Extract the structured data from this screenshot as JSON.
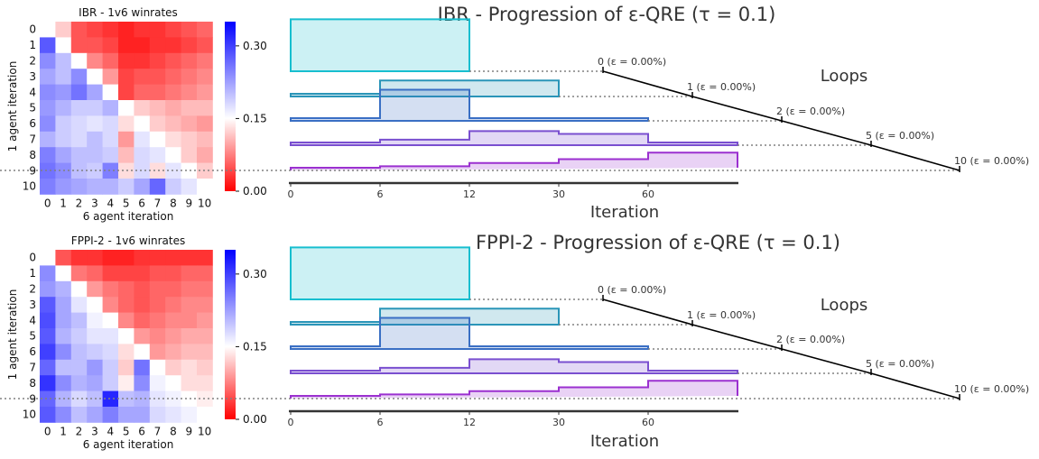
{
  "colors": {
    "loop0": "#17becf",
    "loop1": "#2a95b8",
    "loop2": "#3a6fc4",
    "loop3": "#7a4fd0",
    "loop4": "#9b30d0",
    "axis": "#333333",
    "guide": "#808080"
  },
  "panels": [
    {
      "heatmap": {
        "title": "IBR - 1v6 winrates",
        "xlabel": "6 agent iteration",
        "ylabel": "1 agent iteration",
        "ticks": [
          "0",
          "1",
          "2",
          "3",
          "4",
          "5",
          "6",
          "7",
          "8",
          "9",
          "10"
        ],
        "colorbar": {
          "min": 0.0,
          "max": 0.35,
          "mid": 0.15,
          "tick_labels": [
            "0.00",
            "0.15",
            "0.30"
          ]
        },
        "values": [
          [
            0.15,
            0.12,
            0.05,
            0.04,
            0.03,
            0.02,
            0.03,
            0.03,
            0.04,
            0.05,
            0.06
          ],
          [
            0.28,
            0.15,
            0.05,
            0.05,
            0.04,
            0.02,
            0.02,
            0.03,
            0.03,
            0.04,
            0.05
          ],
          [
            0.24,
            0.2,
            0.15,
            0.08,
            0.06,
            0.03,
            0.03,
            0.04,
            0.05,
            0.06,
            0.07
          ],
          [
            0.22,
            0.2,
            0.24,
            0.15,
            0.09,
            0.04,
            0.05,
            0.05,
            0.06,
            0.07,
            0.08
          ],
          [
            0.24,
            0.23,
            0.26,
            0.22,
            0.15,
            0.04,
            0.06,
            0.06,
            0.07,
            0.08,
            0.09
          ],
          [
            0.23,
            0.21,
            0.19,
            0.19,
            0.21,
            0.15,
            0.12,
            0.11,
            0.1,
            0.11,
            0.11
          ],
          [
            0.24,
            0.19,
            0.18,
            0.17,
            0.18,
            0.13,
            0.15,
            0.12,
            0.11,
            0.1,
            0.09
          ],
          [
            0.21,
            0.19,
            0.18,
            0.2,
            0.18,
            0.09,
            0.17,
            0.15,
            0.13,
            0.12,
            0.11
          ],
          [
            0.25,
            0.22,
            0.2,
            0.2,
            0.19,
            0.11,
            0.18,
            0.17,
            0.15,
            0.12,
            0.1
          ],
          [
            0.26,
            0.24,
            0.2,
            0.19,
            0.25,
            0.13,
            0.18,
            0.13,
            0.17,
            0.15,
            0.12
          ],
          [
            0.25,
            0.23,
            0.22,
            0.21,
            0.21,
            0.19,
            0.22,
            0.27,
            0.19,
            0.17,
            0.15
          ]
        ]
      },
      "chart_data": {
        "type": "area",
        "title": "IBR - Progression of ε-QRE (τ = 0.1)",
        "xlabel": "Iteration",
        "x_tick_labels": [
          "0",
          "6",
          "12",
          "30",
          "60"
        ],
        "annotation": "Loops",
        "series": [
          {
            "loop": "0",
            "epsilon_label": "0 (ε = 0.00%)",
            "segments": [
              0.26,
              0.26
            ],
            "break_iteration": "6"
          },
          {
            "loop": "1",
            "epsilon_label": "1 (ε = 0.00%)",
            "segments": [
              0.0,
              0.07,
              0.07
            ],
            "break_iteration": "12"
          },
          {
            "loop": "2",
            "epsilon_label": "2 (ε = 0.00%)",
            "segments": [
              0.0,
              0.15,
              0.0,
              0.0
            ],
            "break_iteration": "30"
          },
          {
            "loop": "5",
            "epsilon_label": "5 (ε = 0.00%)",
            "segments": [
              0.0,
              0.015,
              0.06,
              0.045,
              0.0
            ],
            "break_iteration": "60"
          },
          {
            "loop": "10",
            "epsilon_label": "10 (ε = 0.00%)",
            "segments": [
              0.0,
              0.008,
              0.025,
              0.045,
              0.08,
              0.0
            ],
            "break_iteration": "end"
          }
        ]
      }
    },
    {
      "heatmap": {
        "title": "FPPI-2 - 1v6 winrates",
        "xlabel": "6 agent iteration",
        "ylabel": "1 agent iteration",
        "ticks": [
          "0",
          "1",
          "2",
          "3",
          "4",
          "5",
          "6",
          "7",
          "8",
          "9",
          "10"
        ],
        "colorbar": {
          "min": 0.0,
          "max": 0.35,
          "mid": 0.15,
          "tick_labels": [
            "0.00",
            "0.15",
            "0.30"
          ]
        },
        "values": [
          [
            0.15,
            0.05,
            0.03,
            0.03,
            0.02,
            0.02,
            0.03,
            0.03,
            0.03,
            0.03,
            0.03
          ],
          [
            0.24,
            0.15,
            0.07,
            0.06,
            0.04,
            0.04,
            0.04,
            0.05,
            0.05,
            0.06,
            0.06
          ],
          [
            0.23,
            0.21,
            0.15,
            0.09,
            0.07,
            0.06,
            0.05,
            0.06,
            0.06,
            0.07,
            0.07
          ],
          [
            0.28,
            0.22,
            0.17,
            0.15,
            0.08,
            0.06,
            0.05,
            0.06,
            0.07,
            0.08,
            0.08
          ],
          [
            0.29,
            0.22,
            0.2,
            0.16,
            0.15,
            0.08,
            0.06,
            0.07,
            0.08,
            0.08,
            0.09
          ],
          [
            0.28,
            0.21,
            0.19,
            0.17,
            0.17,
            0.15,
            0.09,
            0.08,
            0.09,
            0.1,
            0.1
          ],
          [
            0.3,
            0.24,
            0.2,
            0.19,
            0.18,
            0.13,
            0.15,
            0.09,
            0.1,
            0.11,
            0.11
          ],
          [
            0.27,
            0.2,
            0.2,
            0.23,
            0.19,
            0.12,
            0.26,
            0.15,
            0.12,
            0.13,
            0.12
          ],
          [
            0.31,
            0.24,
            0.21,
            0.22,
            0.19,
            0.14,
            0.24,
            0.16,
            0.15,
            0.13,
            0.13
          ],
          [
            0.27,
            0.21,
            0.18,
            0.2,
            0.32,
            0.2,
            0.21,
            0.17,
            0.16,
            0.15,
            0.14
          ],
          [
            0.28,
            0.24,
            0.2,
            0.22,
            0.25,
            0.22,
            0.22,
            0.18,
            0.17,
            0.16,
            0.15
          ]
        ]
      },
      "chart_data": {
        "type": "area",
        "title": "FPPI-2 - Progression of ε-QRE (τ = 0.1)",
        "xlabel": "Iteration",
        "x_tick_labels": [
          "0",
          "6",
          "12",
          "30",
          "60"
        ],
        "annotation": "Loops",
        "series": [
          {
            "loop": "0",
            "epsilon_label": "0 (ε = 0.00%)",
            "segments": [
              0.26,
              0.26
            ],
            "break_iteration": "6"
          },
          {
            "loop": "1",
            "epsilon_label": "1 (ε = 0.00%)",
            "segments": [
              0.0,
              0.07,
              0.07
            ],
            "break_iteration": "12"
          },
          {
            "loop": "2",
            "epsilon_label": "2 (ε = 0.00%)",
            "segments": [
              0.0,
              0.15,
              0.0,
              0.0
            ],
            "break_iteration": "30"
          },
          {
            "loop": "5",
            "epsilon_label": "5 (ε = 0.00%)",
            "segments": [
              0.0,
              0.015,
              0.06,
              0.045,
              0.0
            ],
            "break_iteration": "60"
          },
          {
            "loop": "10",
            "epsilon_label": "10 (ε = 0.00%)",
            "segments": [
              0.0,
              0.008,
              0.025,
              0.045,
              0.08,
              0.0
            ],
            "break_iteration": "end"
          }
        ]
      }
    }
  ]
}
